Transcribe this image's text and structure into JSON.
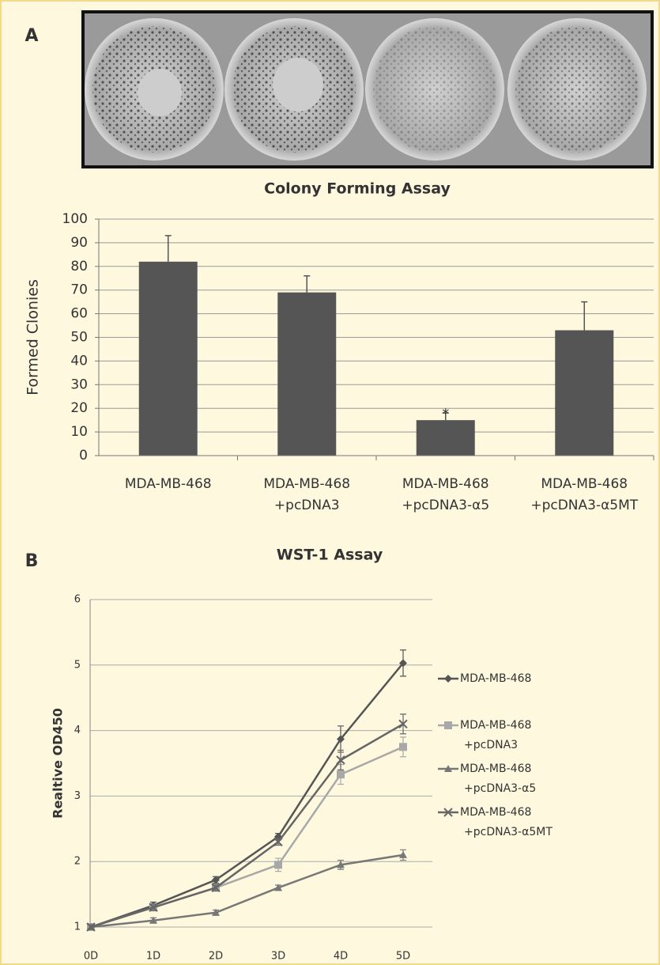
{
  "chart_data": [
    {
      "type": "bar",
      "panel_label": "A",
      "title": "Colony Forming Assay",
      "y_label": "Formed Clonies",
      "categories": [
        [
          "MDA-MB-468"
        ],
        [
          "MDA-MB-468",
          "+pcDNA3"
        ],
        [
          "MDA-MB-468",
          "+pcDNA3-α5"
        ],
        [
          "MDA-MB-468",
          "+pcDNA3-α5MT"
        ]
      ],
      "values": [
        82,
        69,
        15,
        53
      ],
      "errors": [
        11,
        7,
        3,
        12
      ],
      "color": "#555555",
      "annotations": [
        {
          "category_index": 2,
          "text": "*"
        }
      ],
      "ylim": [
        0,
        100
      ],
      "yticks": [
        0,
        10,
        20,
        30,
        40,
        50,
        60,
        70,
        80,
        90,
        100
      ],
      "grid": true
    },
    {
      "type": "line",
      "panel_label": "B",
      "title": "WST-1 Assay",
      "y_label": "Realtive OD450",
      "categories": [
        "0D",
        "1D",
        "2D",
        "3D",
        "4D",
        "5D"
      ],
      "series": [
        {
          "name": [
            "MDA-MB-468"
          ],
          "color": "#555555",
          "marker": "diamond",
          "values": [
            1,
            1.33,
            1.72,
            2.38,
            3.87,
            5.03
          ],
          "errors": [
            0.03,
            0.05,
            0.05,
            0.05,
            0.2,
            0.2
          ]
        },
        {
          "name": [
            "MDA-MB-468",
            "+pcDNA3"
          ],
          "color": "#a8a8a8",
          "marker": "square",
          "values": [
            1,
            1.3,
            1.6,
            1.95,
            3.33,
            3.75
          ],
          "errors": [
            0.03,
            0.05,
            0.05,
            0.1,
            0.15,
            0.15
          ]
        },
        {
          "name": [
            "MDA-MB-468",
            "+pcDNA3-α5"
          ],
          "color": "#777777",
          "marker": "triangle",
          "values": [
            1,
            1.1,
            1.22,
            1.6,
            1.95,
            2.1
          ],
          "errors": [
            0.03,
            0.04,
            0.04,
            0.04,
            0.07,
            0.08
          ]
        },
        {
          "name": [
            "MDA-MB-468",
            "+pcDNA3-α5MT"
          ],
          "color": "#666666",
          "marker": "x",
          "values": [
            1,
            1.3,
            1.6,
            2.3,
            3.55,
            4.1
          ],
          "errors": [
            0.03,
            0.05,
            0.05,
            0.05,
            0.15,
            0.15
          ]
        }
      ],
      "ylim": [
        1,
        6
      ],
      "yticks": [
        1,
        2,
        3,
        4,
        5,
        6
      ],
      "grid": true
    }
  ]
}
